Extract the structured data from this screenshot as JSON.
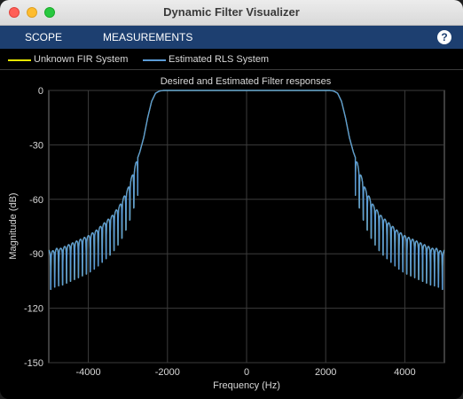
{
  "window": {
    "title": "Dynamic Filter Visualizer"
  },
  "toolstrip": {
    "tabs": [
      "SCOPE",
      "MEASUREMENTS"
    ],
    "help_label": "?"
  },
  "legend": {
    "items": [
      {
        "label": "Unknown FIR System",
        "color": "#e6e600"
      },
      {
        "label": "Estimated RLS System",
        "color": "#5b9bd5"
      }
    ]
  },
  "chart_data": {
    "type": "line",
    "title": "Desired and Estimated Filter responses",
    "xlabel": "Frequency (Hz)",
    "ylabel": "Magnitude (dB)",
    "xlim": [
      -5000,
      5000
    ],
    "ylim": [
      -150,
      0
    ],
    "xticks": [
      -4000,
      -2000,
      0,
      2000,
      4000
    ],
    "yticks": [
      0,
      -30,
      -60,
      -90,
      -120,
      -150
    ],
    "grid": true,
    "legend_position": "top-left",
    "series": [
      {
        "name": "Unknown FIR System",
        "color": "#e6e600",
        "x": [
          -5000,
          -4950,
          -4800,
          -4700,
          -4600,
          -4400,
          -4200,
          -4000,
          -3800,
          -3600,
          -3400,
          -3200,
          -3000,
          -2850,
          -2800,
          -2700,
          -2600,
          -2500,
          -2400,
          -2300,
          -2200,
          -2100,
          -2000,
          0,
          2000,
          2100,
          2200,
          2300,
          2400,
          2500,
          2600,
          2700,
          2800,
          2850,
          3000,
          3200,
          3400,
          3600,
          3800,
          4000,
          4200,
          4400,
          4600,
          4700,
          4800,
          4950,
          5000
        ],
        "y": [
          -88,
          -89,
          -87,
          -87,
          -86,
          -84,
          -82,
          -80,
          -77,
          -73,
          -69,
          -63,
          -54,
          -44,
          -40,
          -34,
          -26,
          -15,
          -6,
          -1.5,
          -0.3,
          0,
          0,
          0,
          0,
          0,
          -0.3,
          -1.5,
          -6,
          -15,
          -26,
          -34,
          -40,
          -44,
          -54,
          -63,
          -69,
          -73,
          -77,
          -80,
          -82,
          -84,
          -86,
          -87,
          -87,
          -89,
          -88
        ]
      },
      {
        "name": "Estimated RLS System",
        "color": "#5b9bd5",
        "x": [
          -5000,
          -4950,
          -4800,
          -4700,
          -4600,
          -4400,
          -4200,
          -4000,
          -3800,
          -3600,
          -3400,
          -3200,
          -3000,
          -2850,
          -2800,
          -2700,
          -2600,
          -2500,
          -2400,
          -2300,
          -2200,
          -2100,
          -2000,
          0,
          2000,
          2100,
          2200,
          2300,
          2400,
          2500,
          2600,
          2700,
          2800,
          2850,
          3000,
          3200,
          3400,
          3600,
          3800,
          4000,
          4200,
          4400,
          4600,
          4700,
          4800,
          4950,
          5000
        ],
        "y": [
          -88,
          -89,
          -87,
          -87,
          -86,
          -84,
          -82,
          -80,
          -77,
          -73,
          -69,
          -63,
          -54,
          -44,
          -40,
          -34,
          -26,
          -15,
          -6,
          -1.5,
          -0.3,
          0,
          0,
          0,
          0,
          0,
          -0.3,
          -1.5,
          -6,
          -15,
          -26,
          -34,
          -40,
          -44,
          -54,
          -63,
          -69,
          -73,
          -77,
          -80,
          -82,
          -84,
          -86,
          -87,
          -87,
          -89,
          -88
        ]
      }
    ]
  }
}
